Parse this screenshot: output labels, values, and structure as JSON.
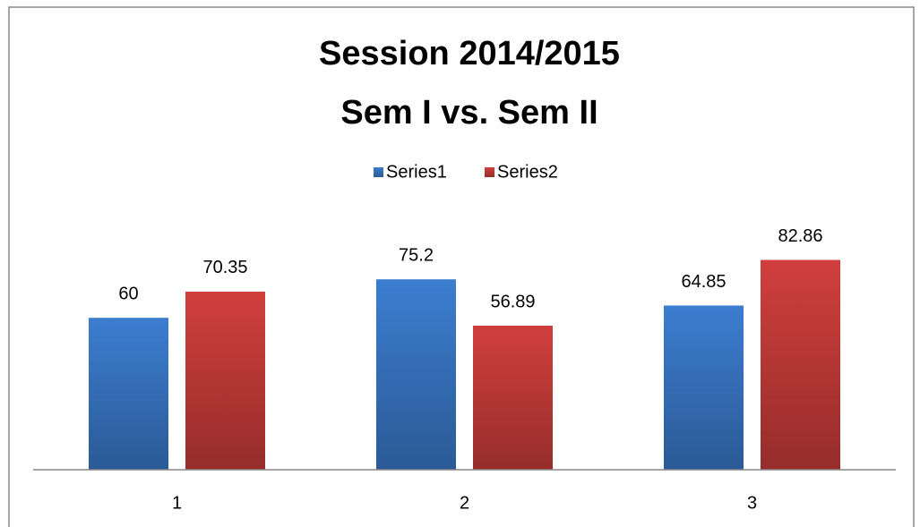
{
  "chart_data": {
    "type": "bar",
    "title": [
      "Session 2014/2015",
      "Sem I vs. Sem II"
    ],
    "categories": [
      "1",
      "2",
      "3"
    ],
    "series": [
      {
        "name": "Series1",
        "color": "#3c7dd0",
        "values": [
          60,
          75.2,
          64.85
        ]
      },
      {
        "name": "Series2",
        "color": "#d03f3c",
        "values": [
          70.35,
          56.89,
          82.86
        ]
      }
    ],
    "ylim": [
      0,
      100
    ]
  }
}
